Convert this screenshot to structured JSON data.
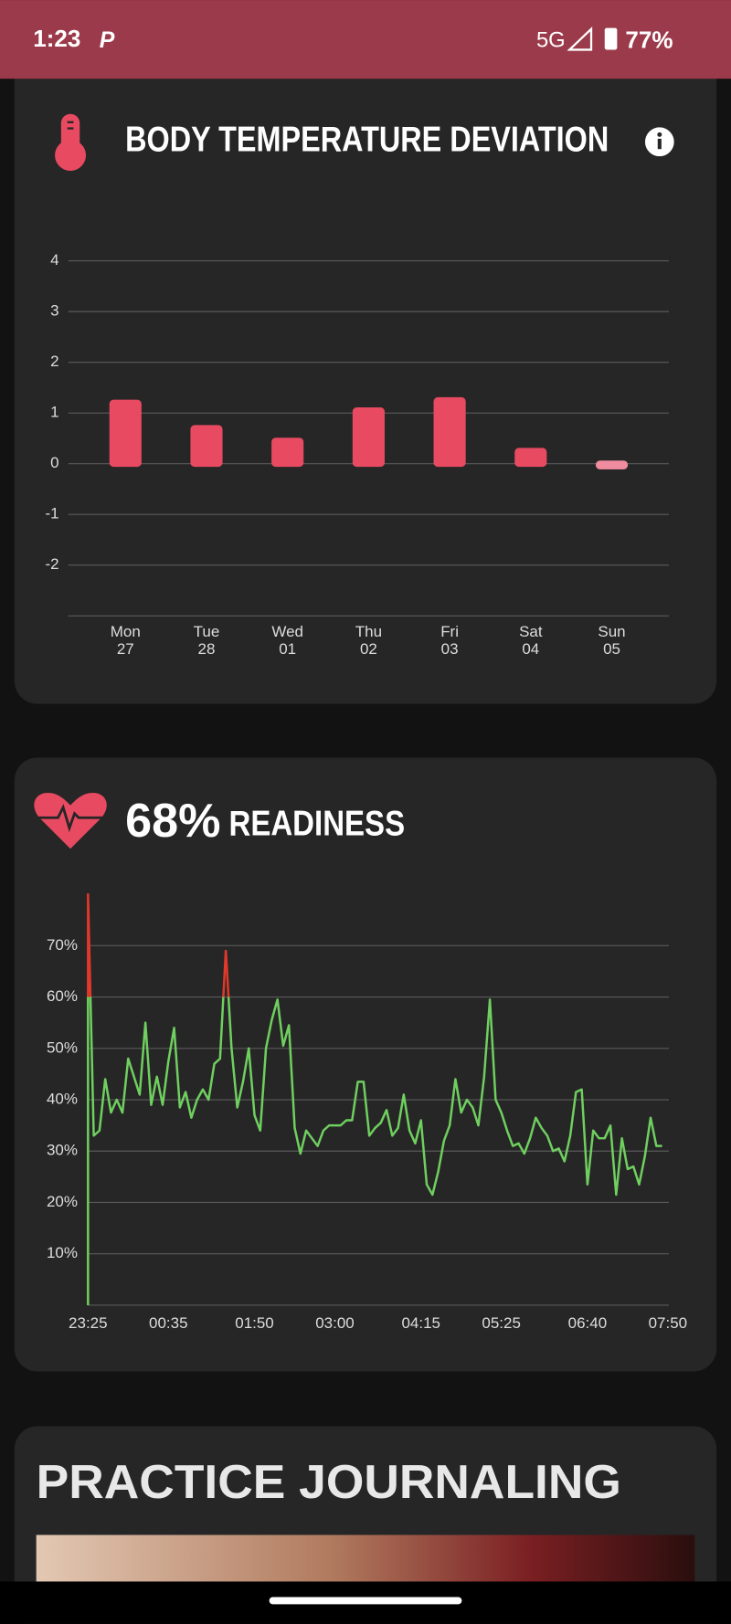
{
  "status_bar": {
    "time": "1:23",
    "network": "5G",
    "battery": "77%"
  },
  "chart_data": [
    {
      "type": "bar",
      "title": "BODY TEMPERATURE DEVIATION",
      "categories": [
        [
          "Mon",
          "27"
        ],
        [
          "Tue",
          "28"
        ],
        [
          "Wed",
          "01"
        ],
        [
          "Thu",
          "02"
        ],
        [
          "Fri",
          "03"
        ],
        [
          "Sat",
          "04"
        ],
        [
          "Sun",
          "05"
        ]
      ],
      "values": [
        1.2,
        0.7,
        0.45,
        1.05,
        1.25,
        0.25,
        -0.05
      ],
      "colors": [
        "#e84a62",
        "#e84a62",
        "#e84a62",
        "#e84a62",
        "#e84a62",
        "#e84a62",
        "#f08ca0"
      ],
      "ylim": [
        -3,
        4
      ],
      "yticks": [
        -2,
        -1,
        0,
        1,
        2,
        3,
        4
      ],
      "grid": true
    },
    {
      "type": "line",
      "score": "68%",
      "title": "READINESS",
      "x": [
        0,
        0,
        5,
        10,
        15,
        20,
        25,
        30,
        35,
        40,
        45,
        50,
        55,
        60,
        65,
        70,
        75,
        80,
        85,
        90,
        95,
        100,
        105,
        110,
        115,
        120,
        125,
        130,
        135,
        140,
        145,
        150,
        155,
        160,
        165,
        170,
        175,
        180,
        185,
        190,
        195,
        200,
        205,
        210,
        215,
        220,
        225,
        230,
        235,
        240,
        245,
        250,
        255,
        260,
        265,
        270,
        275,
        280,
        285,
        290,
        295,
        300,
        305,
        310,
        315,
        320,
        325,
        330,
        335,
        340,
        345,
        350,
        355,
        360,
        365,
        370,
        375,
        380,
        385,
        390,
        395,
        400,
        405,
        410,
        415,
        420,
        425,
        430,
        435,
        440,
        445,
        450,
        455,
        460,
        465,
        470,
        475,
        480,
        485,
        490,
        495,
        500
      ],
      "values": [
        0,
        80,
        33,
        34,
        44,
        37.5,
        40,
        37.5,
        48,
        44.5,
        41,
        55,
        39,
        44.5,
        39,
        47.5,
        54,
        38.5,
        41.5,
        36.5,
        40,
        42,
        40,
        47,
        48,
        69,
        50,
        38.5,
        43.5,
        50,
        37,
        34,
        50,
        55.5,
        59.5,
        50.5,
        54.5,
        34.5,
        29.5,
        34,
        32.5,
        31,
        34,
        35,
        35,
        35,
        36,
        36,
        43.5,
        43.5,
        33,
        34.5,
        35.5,
        38,
        33,
        34.5,
        41,
        34,
        31.5,
        36,
        23.5,
        21.5,
        26,
        32,
        35,
        44,
        37.5,
        40,
        38.5,
        35,
        44.5,
        59.5,
        40,
        37.5,
        34,
        31,
        31.5,
        29.5,
        32.5,
        36.5,
        34.5,
        33,
        30,
        30.5,
        28,
        33,
        41.5,
        42,
        23.5,
        34,
        32.5,
        32.5,
        35,
        21.5,
        32.5,
        26.5,
        27,
        23.5,
        29,
        36.5,
        31,
        31
      ],
      "color": "#6fcf5f",
      "threshold": 60,
      "threshold_color": "#e0392b",
      "xlim": [
        0,
        505
      ],
      "xticks": [
        {
          "value": 0,
          "label": "23:25"
        },
        {
          "value": 70,
          "label": "00:35"
        },
        {
          "value": 145,
          "label": "01:50"
        },
        {
          "value": 215,
          "label": "03:00"
        },
        {
          "value": 290,
          "label": "04:15"
        },
        {
          "value": 360,
          "label": "05:25"
        },
        {
          "value": 435,
          "label": "06:40"
        },
        {
          "value": 505,
          "label": "07:50"
        }
      ],
      "ylim": [
        0,
        80
      ],
      "yticks": [
        {
          "value": 10,
          "label": "10%"
        },
        {
          "value": 20,
          "label": "20%"
        },
        {
          "value": 30,
          "label": "30%"
        },
        {
          "value": 40,
          "label": "40%"
        },
        {
          "value": 50,
          "label": "50%"
        },
        {
          "value": 60,
          "label": "60%"
        },
        {
          "value": 70,
          "label": "70%"
        }
      ],
      "grid": true
    }
  ],
  "journal": {
    "title": "PRACTICE JOURNALING"
  }
}
